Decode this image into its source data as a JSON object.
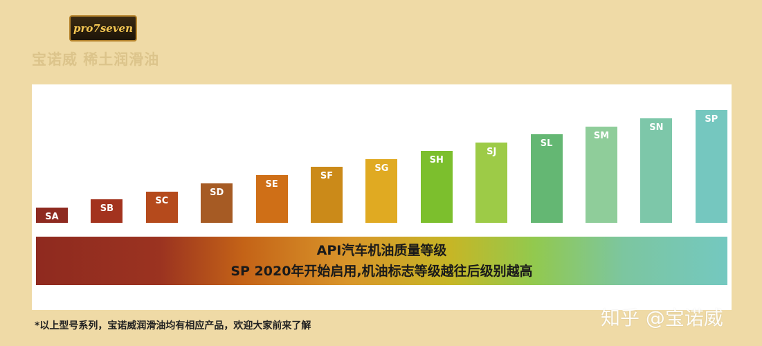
{
  "brand": {
    "logo_text": "pro7seven",
    "subtitle": "宝诺威  稀土润滑油"
  },
  "chart_data": {
    "type": "bar",
    "categories": [
      "SA",
      "SB",
      "SC",
      "SD",
      "SE",
      "SF",
      "SG",
      "SH",
      "SJ",
      "SL",
      "SM",
      "SN",
      "SP"
    ],
    "values": [
      1,
      2,
      3,
      4,
      5,
      6,
      7,
      8,
      9,
      10,
      11,
      12,
      13
    ],
    "colors": [
      "#8e2a20",
      "#a3331e",
      "#b54a1c",
      "#a65b24",
      "#cf6f17",
      "#cb8a19",
      "#e0aa22",
      "#7cbf2d",
      "#9dcb47",
      "#64b773",
      "#8fcd9a",
      "#7dc7a9",
      "#75c7bf"
    ],
    "title": "",
    "xlabel": "",
    "ylabel": ""
  },
  "legend_band": {
    "line1": "API汽车机油质量等级",
    "line2": "SP 2020年开始启用,机油标志等级越往后级别越高"
  },
  "footnote": "*以上型号系列，宝诺威润滑油均有相应产品，欢迎大家前来了解",
  "watermark": "知乎 @宝诺威"
}
